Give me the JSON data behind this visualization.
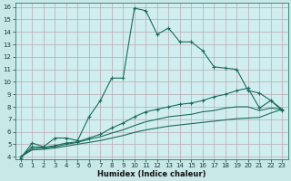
{
  "xlabel": "Humidex (Indice chaleur)",
  "bg_color": "#c8e8e8",
  "plot_bg_color": "#d0eef0",
  "grid_color": "#b8a8b0",
  "line_color": "#1a6b5a",
  "xlim": [
    -0.5,
    23.5
  ],
  "ylim": [
    3.8,
    16.3
  ],
  "xticks": [
    0,
    1,
    2,
    3,
    4,
    5,
    6,
    7,
    8,
    9,
    10,
    11,
    12,
    13,
    14,
    15,
    16,
    17,
    18,
    19,
    20,
    21,
    22,
    23
  ],
  "yticks": [
    4,
    5,
    6,
    7,
    8,
    9,
    10,
    11,
    12,
    13,
    14,
    15,
    16
  ],
  "lines": [
    {
      "x": [
        0,
        1,
        2,
        3,
        4,
        5,
        6,
        7,
        8,
        9,
        10,
        11,
        12,
        13,
        14,
        15,
        16,
        17,
        18,
        19,
        20,
        21,
        22,
        23
      ],
      "y": [
        3.9,
        5.1,
        4.8,
        5.5,
        5.5,
        5.3,
        7.2,
        8.5,
        10.3,
        10.3,
        15.9,
        15.7,
        13.8,
        14.3,
        13.2,
        13.2,
        12.5,
        11.2,
        11.1,
        11.0,
        9.3,
        9.1,
        8.5,
        7.7
      ],
      "marker": true
    },
    {
      "x": [
        0,
        1,
        2,
        3,
        4,
        5,
        6,
        7,
        8,
        9,
        10,
        11,
        12,
        13,
        14,
        15,
        16,
        17,
        18,
        19,
        20,
        21,
        22,
        23
      ],
      "y": [
        4.0,
        4.8,
        4.75,
        4.9,
        5.1,
        5.2,
        5.5,
        5.8,
        6.3,
        6.7,
        7.2,
        7.6,
        7.8,
        8.0,
        8.2,
        8.3,
        8.5,
        8.8,
        9.0,
        9.3,
        9.5,
        7.9,
        8.5,
        7.8
      ],
      "marker": true
    },
    {
      "x": [
        0,
        1,
        2,
        3,
        4,
        5,
        6,
        7,
        8,
        9,
        10,
        11,
        12,
        13,
        14,
        15,
        16,
        17,
        18,
        19,
        20,
        21,
        22,
        23
      ],
      "y": [
        4.0,
        4.65,
        4.7,
        4.8,
        5.0,
        5.15,
        5.4,
        5.6,
        5.9,
        6.15,
        6.5,
        6.8,
        7.0,
        7.2,
        7.3,
        7.4,
        7.6,
        7.7,
        7.9,
        8.0,
        8.0,
        7.7,
        7.9,
        7.8
      ],
      "marker": false
    },
    {
      "x": [
        0,
        1,
        2,
        3,
        4,
        5,
        6,
        7,
        8,
        9,
        10,
        11,
        12,
        13,
        14,
        15,
        16,
        17,
        18,
        19,
        20,
        21,
        22,
        23
      ],
      "y": [
        4.0,
        4.55,
        4.6,
        4.7,
        4.85,
        5.0,
        5.15,
        5.3,
        5.5,
        5.7,
        5.95,
        6.15,
        6.3,
        6.45,
        6.55,
        6.65,
        6.75,
        6.85,
        6.95,
        7.05,
        7.1,
        7.15,
        7.5,
        7.8
      ],
      "marker": false
    }
  ]
}
